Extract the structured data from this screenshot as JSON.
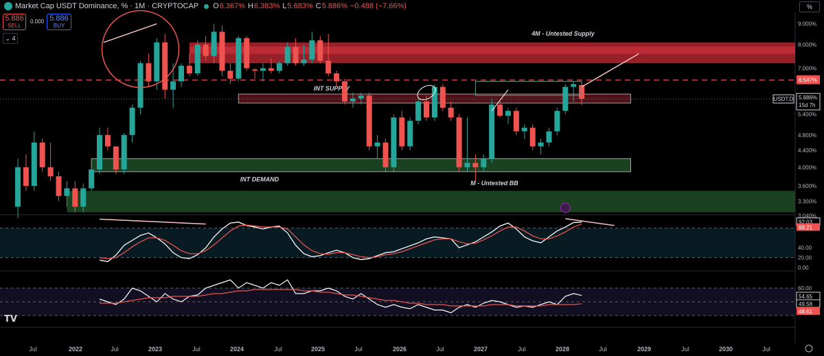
{
  "header": {
    "title": "Market Cap USDT Dominance, %",
    "interval": "1M",
    "exchange": "CRYPTOCAP",
    "open_label": "O",
    "open": "6.367%",
    "high_label": "H",
    "high": "6.383%",
    "low_label": "L",
    "low": "5.683%",
    "close_label": "C",
    "close": "5.886%",
    "change": "−0.488 (−7.66%)"
  },
  "trade": {
    "sell_value": "5.886",
    "sell_label": "SELL",
    "buy_value": "5.886",
    "buy_label": "BUY",
    "spread": "0.000"
  },
  "layers_count": "4",
  "scale_mode": "%",
  "colors": {
    "up": "#26a69a",
    "down": "#ef5350",
    "supply": "#b2242f",
    "demand": "#1e4d26",
    "background": "#000000"
  },
  "chart_data": [
    {
      "type": "candlestick",
      "symbol": "USDT.D",
      "x_ticks": [
        "Jul",
        "2022",
        "Jul",
        "2023",
        "Jul",
        "2024",
        "Jul",
        "2025",
        "Jul",
        "2026",
        "Jul",
        "2027",
        "Jul",
        "2028",
        "Jul",
        "2029",
        "Jul",
        "2030",
        "Jul"
      ],
      "y_ticks": [
        "9.000%",
        "8.000%",
        "7.000%",
        "6.000%",
        "5.400%",
        "4.800%",
        "4.400%",
        "4.000%",
        "3.600%",
        "3.300%",
        "3.040%"
      ],
      "ylim": [
        3.0,
        9.6
      ],
      "log_scale": true,
      "candles": [
        {
          "o": 3.2,
          "h": 4.2,
          "l": 3.0,
          "c": 4.0
        },
        {
          "o": 4.0,
          "h": 4.3,
          "l": 3.5,
          "c": 3.6
        },
        {
          "o": 3.6,
          "h": 4.9,
          "l": 3.5,
          "c": 4.6
        },
        {
          "o": 4.6,
          "h": 4.7,
          "l": 3.9,
          "c": 4.0
        },
        {
          "o": 4.0,
          "h": 4.6,
          "l": 3.7,
          "c": 3.8
        },
        {
          "o": 3.8,
          "h": 3.9,
          "l": 3.3,
          "c": 3.4
        },
        {
          "o": 3.4,
          "h": 3.7,
          "l": 3.2,
          "c": 3.55
        },
        {
          "o": 3.55,
          "h": 3.7,
          "l": 3.1,
          "c": 3.2
        },
        {
          "o": 3.2,
          "h": 3.65,
          "l": 3.1,
          "c": 3.55
        },
        {
          "o": 3.55,
          "h": 4.0,
          "l": 3.5,
          "c": 3.95
        },
        {
          "o": 3.95,
          "h": 5.0,
          "l": 3.85,
          "c": 4.8
        },
        {
          "o": 4.8,
          "h": 5.0,
          "l": 4.4,
          "c": 4.5
        },
        {
          "o": 4.5,
          "h": 4.5,
          "l": 3.85,
          "c": 3.95
        },
        {
          "o": 3.95,
          "h": 4.85,
          "l": 3.85,
          "c": 4.8
        },
        {
          "o": 4.8,
          "h": 5.7,
          "l": 4.6,
          "c": 5.6
        },
        {
          "o": 5.6,
          "h": 7.3,
          "l": 5.4,
          "c": 7.2
        },
        {
          "o": 7.2,
          "h": 7.6,
          "l": 6.3,
          "c": 6.5
        },
        {
          "o": 6.5,
          "h": 8.3,
          "l": 6.2,
          "c": 8.1
        },
        {
          "o": 8.1,
          "h": 8.5,
          "l": 5.9,
          "c": 6.2
        },
        {
          "o": 6.2,
          "h": 7.2,
          "l": 5.6,
          "c": 6.5
        },
        {
          "o": 6.5,
          "h": 7.2,
          "l": 6.3,
          "c": 7.1
        },
        {
          "o": 7.1,
          "h": 7.6,
          "l": 6.7,
          "c": 6.8
        },
        {
          "o": 6.8,
          "h": 8.2,
          "l": 6.7,
          "c": 8.0
        },
        {
          "o": 8.0,
          "h": 8.4,
          "l": 7.3,
          "c": 7.5
        },
        {
          "o": 7.5,
          "h": 9.0,
          "l": 7.2,
          "c": 8.6
        },
        {
          "o": 8.6,
          "h": 8.9,
          "l": 6.7,
          "c": 6.9
        },
        {
          "o": 6.9,
          "h": 7.2,
          "l": 6.4,
          "c": 6.6
        },
        {
          "o": 6.6,
          "h": 8.4,
          "l": 6.5,
          "c": 8.3
        },
        {
          "o": 8.3,
          "h": 8.4,
          "l": 6.9,
          "c": 7.0
        },
        {
          "o": 6.95,
          "h": 7.0,
          "l": 6.6,
          "c": 6.9
        },
        {
          "o": 6.9,
          "h": 7.2,
          "l": 6.5,
          "c": 7.0
        },
        {
          "o": 7.0,
          "h": 7.4,
          "l": 6.8,
          "c": 6.9
        },
        {
          "o": 6.9,
          "h": 7.3,
          "l": 6.8,
          "c": 7.2
        },
        {
          "o": 7.2,
          "h": 8.1,
          "l": 7.1,
          "c": 7.9
        },
        {
          "o": 7.9,
          "h": 8.3,
          "l": 7.1,
          "c": 7.2
        },
        {
          "o": 7.2,
          "h": 8.0,
          "l": 7.1,
          "c": 7.35
        },
        {
          "o": 7.35,
          "h": 8.6,
          "l": 7.2,
          "c": 8.2
        },
        {
          "o": 8.2,
          "h": 8.4,
          "l": 7.2,
          "c": 7.3
        },
        {
          "o": 7.3,
          "h": 8.5,
          "l": 6.7,
          "c": 6.8
        },
        {
          "o": 6.8,
          "h": 6.9,
          "l": 6.3,
          "c": 6.5
        },
        {
          "o": 6.5,
          "h": 6.6,
          "l": 5.7,
          "c": 5.8
        },
        {
          "o": 5.8,
          "h": 6.1,
          "l": 5.6,
          "c": 5.9
        },
        {
          "o": 5.9,
          "h": 6.1,
          "l": 5.7,
          "c": 6.0
        },
        {
          "o": 6.0,
          "h": 6.1,
          "l": 4.4,
          "c": 4.5
        },
        {
          "o": 4.5,
          "h": 4.8,
          "l": 4.2,
          "c": 4.6
        },
        {
          "o": 4.6,
          "h": 4.7,
          "l": 3.9,
          "c": 4.0
        },
        {
          "o": 4.0,
          "h": 5.4,
          "l": 3.9,
          "c": 5.3
        },
        {
          "o": 5.3,
          "h": 5.5,
          "l": 4.4,
          "c": 4.5
        },
        {
          "o": 4.5,
          "h": 5.3,
          "l": 4.4,
          "c": 5.2
        },
        {
          "o": 5.2,
          "h": 5.9,
          "l": 5.1,
          "c": 5.8
        },
        {
          "o": 5.8,
          "h": 6.0,
          "l": 5.2,
          "c": 5.3
        },
        {
          "o": 5.3,
          "h": 6.4,
          "l": 5.2,
          "c": 6.3
        },
        {
          "o": 6.3,
          "h": 6.4,
          "l": 5.5,
          "c": 5.6
        },
        {
          "o": 5.6,
          "h": 5.8,
          "l": 5.2,
          "c": 5.3
        },
        {
          "o": 5.3,
          "h": 5.4,
          "l": 3.9,
          "c": 4.0
        },
        {
          "o": 4.0,
          "h": 5.3,
          "l": 3.9,
          "c": 4.1
        },
        {
          "o": 4.1,
          "h": 4.3,
          "l": 3.7,
          "c": 4.0
        },
        {
          "o": 4.0,
          "h": 4.3,
          "l": 3.9,
          "c": 4.2
        },
        {
          "o": 4.2,
          "h": 5.9,
          "l": 4.1,
          "c": 5.7
        },
        {
          "o": 5.7,
          "h": 5.8,
          "l": 5.3,
          "c": 5.35
        },
        {
          "o": 5.35,
          "h": 5.6,
          "l": 5.1,
          "c": 5.5
        },
        {
          "o": 5.5,
          "h": 5.6,
          "l": 4.8,
          "c": 4.9
        },
        {
          "o": 4.9,
          "h": 5.1,
          "l": 4.7,
          "c": 5.0
        },
        {
          "o": 5.0,
          "h": 5.1,
          "l": 4.4,
          "c": 4.5
        },
        {
          "o": 4.5,
          "h": 4.7,
          "l": 4.3,
          "c": 4.6
        },
        {
          "o": 4.6,
          "h": 5.0,
          "l": 4.5,
          "c": 4.9
        },
        {
          "o": 4.9,
          "h": 5.6,
          "l": 4.8,
          "c": 5.5
        },
        {
          "o": 5.5,
          "h": 6.4,
          "l": 5.4,
          "c": 6.3
        },
        {
          "o": 6.3,
          "h": 6.5,
          "l": 5.8,
          "c": 6.4
        },
        {
          "o": 6.367,
          "h": 6.383,
          "l": 5.683,
          "c": 5.886
        }
      ],
      "zones": [
        {
          "label": "4M - Untested Supply",
          "from": 7.2,
          "to": 8.1
        },
        {
          "label": "INT SUPPLY",
          "from": 5.75,
          "to": 6.05
        },
        {
          "label": "INT DEMAND",
          "from": 3.9,
          "to": 4.2
        },
        {
          "label": "M - Untested BB",
          "from": 3.1,
          "to": 3.5
        }
      ],
      "price_labels": [
        {
          "symbol": "USDT.D",
          "value": "5.886%",
          "countdown": "15d 7h"
        },
        {
          "value": "6.547%"
        }
      ]
    },
    {
      "type": "line",
      "name": "oscillator-1",
      "ylim": [
        0,
        100
      ],
      "y_ticks": [
        "80.00",
        "40.00",
        "20.00",
        "0.00"
      ],
      "price_labels": [
        "92.03",
        "88.21"
      ],
      "series": [
        {
          "values": [
            15,
            12,
            25,
            45,
            55,
            65,
            70,
            60,
            48,
            30,
            20,
            18,
            26,
            40,
            62,
            78,
            90,
            92,
            85,
            82,
            78,
            82,
            84,
            70,
            45,
            28,
            22,
            24,
            30,
            35,
            30,
            20,
            16,
            18,
            24,
            30,
            32,
            38,
            44,
            50,
            58,
            62,
            60,
            58,
            40,
            46,
            52,
            62,
            72,
            84,
            90,
            78,
            62,
            54,
            50,
            62,
            74,
            82,
            91,
            92.03
          ]
        },
        {
          "values": [
            20,
            18,
            20,
            30,
            42,
            52,
            60,
            60,
            55,
            45,
            34,
            28,
            28,
            34,
            46,
            60,
            74,
            84,
            86,
            84,
            82,
            82,
            82,
            78,
            62,
            46,
            34,
            28,
            27,
            30,
            30,
            26,
            22,
            20,
            22,
            26,
            28,
            32,
            38,
            44,
            50,
            56,
            58,
            58,
            52,
            48,
            49,
            56,
            64,
            74,
            82,
            82,
            74,
            64,
            58,
            58,
            64,
            72,
            82,
            88.21
          ]
        }
      ]
    },
    {
      "type": "line",
      "name": "oscillator-2",
      "ylim": [
        35,
        70
      ],
      "y_ticks": [
        "60.00"
      ],
      "price_labels": [
        "54.65",
        "49.58",
        "48.61"
      ],
      "series": [
        {
          "values": [
            52,
            50,
            48,
            52,
            60,
            58,
            54,
            50,
            56,
            52,
            50,
            54,
            55,
            60,
            62,
            64,
            66,
            60,
            64,
            62,
            60,
            64,
            62,
            66,
            56,
            56,
            58,
            58,
            60,
            58,
            54,
            52,
            56,
            52,
            48,
            46,
            48,
            46,
            45,
            48,
            46,
            44,
            44,
            42,
            46,
            48,
            46,
            49,
            51,
            50,
            48,
            46,
            47,
            46,
            48,
            50,
            48,
            54,
            56,
            54.65
          ]
        },
        {
          "values": [
            49,
            49,
            49,
            50,
            51,
            52,
            53,
            53,
            53,
            54,
            54,
            54,
            54,
            55,
            56,
            56,
            57,
            58,
            58,
            59,
            59,
            59,
            59,
            59,
            59,
            58,
            58,
            57,
            57,
            56,
            55,
            55,
            54,
            53,
            52,
            51,
            51,
            50,
            49,
            49,
            48,
            48,
            48,
            47,
            47,
            47,
            47,
            47,
            48,
            48,
            48,
            47,
            47,
            47,
            47,
            48,
            48,
            48,
            48,
            48.61
          ]
        }
      ]
    }
  ]
}
